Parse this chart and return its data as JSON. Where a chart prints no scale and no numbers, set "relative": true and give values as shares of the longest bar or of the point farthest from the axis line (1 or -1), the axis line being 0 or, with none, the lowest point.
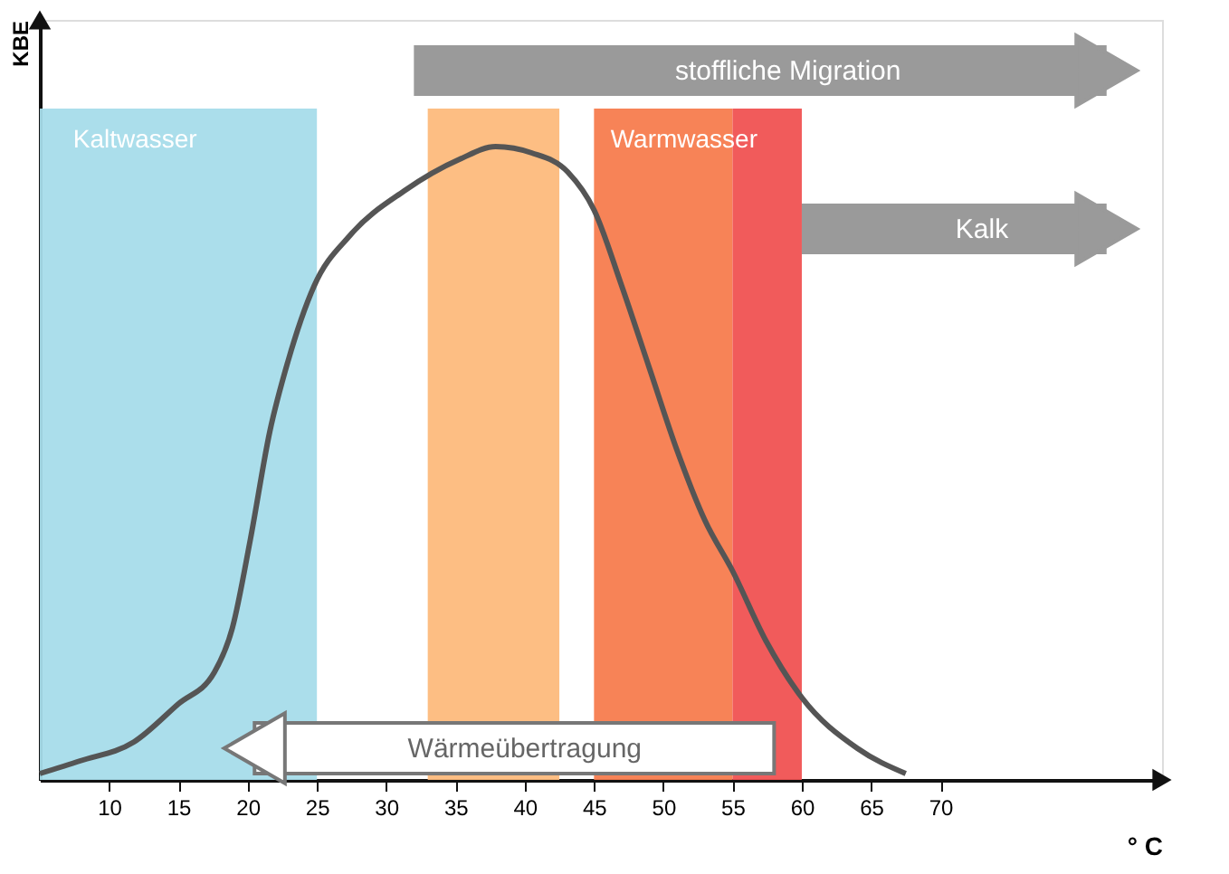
{
  "chart_data": {
    "type": "line",
    "relative": true,
    "xlabel": "° C",
    "ylabel": "KBE",
    "x": [
      5,
      7.9,
      11.8,
      15,
      17.6,
      18.9,
      20.2,
      21.6,
      22.9,
      24.8,
      27.4,
      31.3,
      35.3,
      37.9,
      40.5,
      43.1,
      45,
      47,
      49,
      51,
      53,
      55,
      57.4,
      60,
      64,
      67.5
    ],
    "series": [
      {
        "color": "#555555",
        "values": [
          0.01,
          0.03,
          0.06,
          0.12,
          0.17,
          0.24,
          0.38,
          0.55,
          0.66,
          0.78,
          0.86,
          0.93,
          0.98,
          1.0,
          0.99,
          0.96,
          0.9,
          0.78,
          0.65,
          0.52,
          0.41,
          0.33,
          0.22,
          0.13,
          0.05,
          0.01
        ]
      }
    ],
    "xlim": [
      5,
      86
    ],
    "xticks": [
      10,
      15,
      20,
      25,
      30,
      35,
      40,
      45,
      50,
      55,
      60,
      65,
      70
    ],
    "bands": [
      {
        "axis": "x",
        "from": 5,
        "to": 25,
        "label": "Kaltwasser",
        "color": "#a6dcea"
      },
      {
        "axis": "x",
        "from": 33,
        "to": 42.5,
        "label": null,
        "color": "#fdbb7c"
      },
      {
        "axis": "x",
        "from": 45,
        "to": 55,
        "label": "Warmwasser",
        "color": "#f77c4e"
      },
      {
        "axis": "x",
        "from": 55,
        "to": 60,
        "label": null,
        "color": "#f05252"
      }
    ],
    "annotations": [
      "stoffliche Migration",
      "Kalk",
      "Wärmeübertragung"
    ],
    "grid": false
  }
}
